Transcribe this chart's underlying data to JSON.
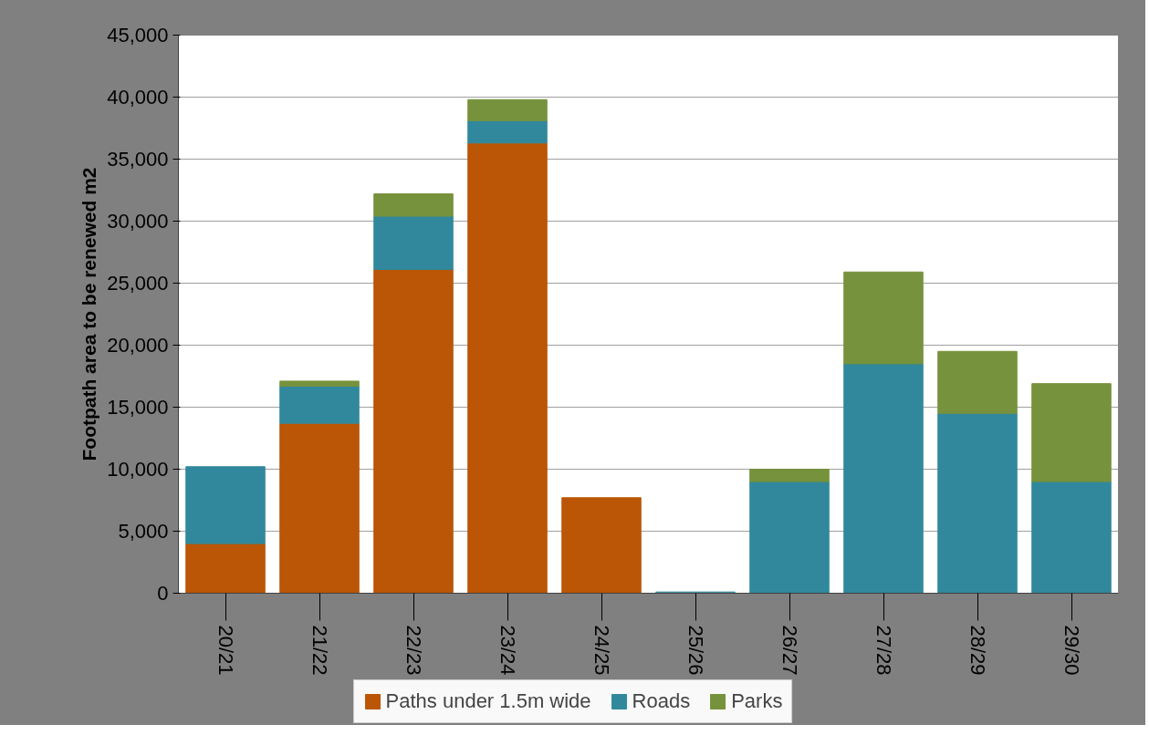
{
  "chart_data": {
    "type": "bar",
    "stacked": true,
    "ylabel": "Footpath area to be renewed m2",
    "categories": [
      "20/21",
      "21/22",
      "22/23",
      "23/24",
      "24/25",
      "25/26",
      "26/27",
      "27/28",
      "28/29",
      "29/30"
    ],
    "series": [
      {
        "name": "Paths under 1.5m wide",
        "color": "#bb5606",
        "values": [
          4000,
          13700,
          26100,
          36300,
          7700,
          null,
          null,
          null,
          null,
          null
        ]
      },
      {
        "name": "Roads",
        "color": "#31889c",
        "values": [
          6200,
          3000,
          4300,
          1800,
          null,
          100,
          9000,
          18500,
          14500,
          9000
        ]
      },
      {
        "name": "Parks",
        "color": "#76923c",
        "values": [
          null,
          400,
          1800,
          1700,
          null,
          null,
          1000,
          7400,
          5000,
          7900
        ]
      }
    ],
    "ylim": [
      0,
      45000
    ],
    "yticks": [
      {
        "value": 0,
        "label": "0"
      },
      {
        "value": 5000,
        "label": "5,000"
      },
      {
        "value": 10000,
        "label": "10,000"
      },
      {
        "value": 15000,
        "label": "15,000"
      },
      {
        "value": 20000,
        "label": "20,000"
      },
      {
        "value": 25000,
        "label": "25,000"
      },
      {
        "value": 30000,
        "label": "30,000"
      },
      {
        "value": 35000,
        "label": "35,000"
      },
      {
        "value": 40000,
        "label": "40,000"
      },
      {
        "value": 45000,
        "label": "45,000"
      }
    ],
    "grid": "y",
    "legend": "bottom"
  }
}
